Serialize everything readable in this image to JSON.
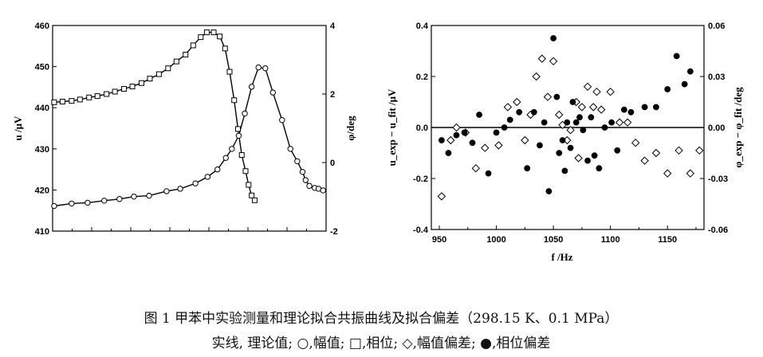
{
  "chart_data": [
    {
      "type": "line",
      "x_range": [
        880,
        1240
      ],
      "left_axis": {
        "label": "u /μV",
        "ylim": [
          410,
          460
        ],
        "ticks": [
          "410",
          "420",
          "430",
          "440",
          "450",
          "460"
        ]
      },
      "right_axis": {
        "label": "φ/deg",
        "ylim": [
          -2,
          4
        ],
        "ticks": [
          "-2",
          "0",
          "2",
          "4"
        ]
      },
      "series": [
        {
          "marker": "circle",
          "axis": "left",
          "x": [
            882,
            905,
            926,
            948,
            968,
            987,
            1007,
            1030,
            1048,
            1068,
            1084,
            1097,
            1108,
            1116,
            1125,
            1133,
            1142,
            1151,
            1160,
            1170,
            1182,
            1193,
            1202,
            1209,
            1213,
            1218,
            1225,
            1230,
            1236
          ],
          "values": [
            416.1,
            416.7,
            416.9,
            417.4,
            417.8,
            418.4,
            418.6,
            419.7,
            420.3,
            421.6,
            423.2,
            425.0,
            427.8,
            430.0,
            433.2,
            438.6,
            445.1,
            449.8,
            449.6,
            443.7,
            437.0,
            430.0,
            427.0,
            424.4,
            422.4,
            421.0,
            420.5,
            420.3,
            419.9
          ]
        },
        {
          "marker": "square",
          "axis": "right",
          "x": [
            882,
            893,
            905,
            916,
            928,
            939,
            951,
            962,
            974,
            985,
            997,
            1008,
            1020,
            1032,
            1043,
            1055,
            1065,
            1075,
            1083,
            1092,
            1100,
            1107,
            1113,
            1119,
            1124,
            1129,
            1134,
            1138,
            1142,
            1146
          ],
          "values": [
            1.76,
            1.78,
            1.8,
            1.84,
            1.9,
            1.94,
            2.0,
            2.07,
            2.15,
            2.22,
            2.32,
            2.45,
            2.58,
            2.75,
            2.95,
            3.15,
            3.42,
            3.66,
            3.8,
            3.8,
            3.68,
            3.33,
            2.65,
            1.82,
            0.98,
            0.22,
            -0.25,
            -0.65,
            -0.96,
            -1.1
          ]
        }
      ]
    },
    {
      "type": "scatter",
      "xlabel": "f /Hz",
      "xlim": [
        943,
        1182
      ],
      "x_ticks": [
        "950",
        "1000",
        "1050",
        "1100",
        "1150"
      ],
      "left_axis": {
        "label": "u_exp − u_fit /μV",
        "ylim": [
          -0.4,
          0.4
        ],
        "ticks": [
          "-0.4",
          "-0.2",
          "0.0",
          "0.2",
          "0.4"
        ]
      },
      "right_axis": {
        "label": "φ_exp − φ_fit /deg",
        "ylim": [
          -0.06,
          0.06
        ],
        "ticks": [
          "-0.06",
          "-0.03",
          "0.00",
          "0.03",
          "0.06"
        ]
      },
      "series": [
        {
          "marker": "open-diamond",
          "axis": "left",
          "x": [
            952,
            960,
            965,
            973,
            982,
            990,
            1002,
            1010,
            1018,
            1025,
            1030,
            1035,
            1040,
            1045,
            1050,
            1055,
            1058,
            1062,
            1065,
            1070,
            1072,
            1075,
            1080,
            1085,
            1088,
            1092,
            1100,
            1108,
            1115,
            1122,
            1130,
            1140,
            1150,
            1160,
            1170,
            1178
          ],
          "values": [
            -0.27,
            -0.05,
            0.0,
            -0.02,
            -0.16,
            -0.08,
            -0.07,
            0.08,
            0.1,
            -0.05,
            0.05,
            0.2,
            0.27,
            0.12,
            0.26,
            0.05,
            0.01,
            -0.05,
            -0.01,
            0.1,
            -0.12,
            0.08,
            0.16,
            0.08,
            0.14,
            0.07,
            0.14,
            0.02,
            0.02,
            -0.06,
            -0.13,
            -0.1,
            -0.18,
            -0.09,
            -0.18,
            -0.09
          ]
        },
        {
          "marker": "filled-circle",
          "axis": "left",
          "x": [
            952,
            958,
            965,
            972,
            979,
            985,
            993,
            1000,
            1007,
            1012,
            1020,
            1027,
            1033,
            1038,
            1042,
            1046,
            1050,
            1053,
            1055,
            1058,
            1060,
            1062,
            1065,
            1067,
            1070,
            1073,
            1076,
            1080,
            1083,
            1086,
            1090,
            1095,
            1101,
            1106,
            1112,
            1118,
            1130,
            1140,
            1150,
            1158,
            1165,
            1170
          ],
          "values": [
            -0.05,
            -0.1,
            -0.03,
            -0.02,
            -0.06,
            0.05,
            -0.18,
            -0.02,
            0.0,
            0.03,
            0.06,
            -0.16,
            0.06,
            -0.07,
            0.02,
            -0.25,
            0.35,
            0.12,
            -0.1,
            -0.05,
            -0.17,
            0.02,
            -0.08,
            0.1,
            0.02,
            0.04,
            -0.01,
            -0.13,
            0.04,
            -0.11,
            -0.16,
            0.0,
            0.02,
            -0.09,
            0.07,
            0.06,
            0.08,
            0.08,
            0.15,
            0.28,
            0.17,
            0.22
          ]
        }
      ]
    }
  ],
  "caption": {
    "line1": "图 1  甲苯中实验测量和理论拟合共振曲线及拟合偏差（298.15 K、0.1 MPa）",
    "line2": "实线, 理论值; ○,幅值; □,相位; ◇,幅值偏差; ●,相位偏差"
  }
}
